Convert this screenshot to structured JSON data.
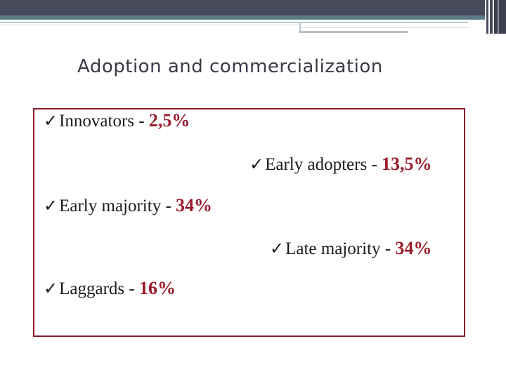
{
  "slide": {
    "title": "Adoption and commercialization"
  },
  "items": [
    {
      "check": "✓",
      "label": "Innovators - ",
      "value": "2,5%"
    },
    {
      "check": "✓",
      "label": "Early adopters - ",
      "value": "13,5%"
    },
    {
      "check": "✓",
      "label": "Early majority - ",
      "value": "34%"
    },
    {
      "check": "✓",
      "label": "Late majority - ",
      "value": "34%"
    },
    {
      "check": "✓",
      "label": "Laggards - ",
      "value": "16%"
    }
  ],
  "colors": {
    "header_dark": "#474a5a",
    "header_teal": "#5a7a86",
    "accent": "#9b1b2a",
    "box_border": "#8b1c2c",
    "title": "#3a3a46"
  }
}
